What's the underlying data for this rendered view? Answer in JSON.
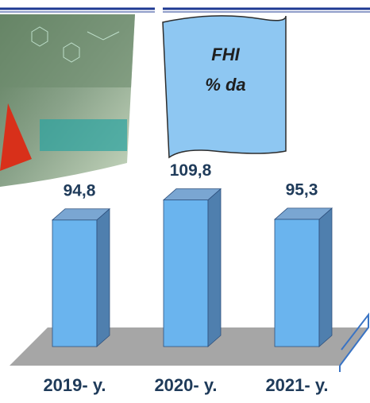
{
  "chart_data": {
    "type": "bar3d",
    "title": "FHI",
    "subtitle": "% da",
    "categories": [
      "2019- y.",
      "2020- y.",
      "2021- y."
    ],
    "values": [
      94.8,
      109.8,
      95.3
    ],
    "value_labels": [
      "94,8",
      "109,8",
      "95,3"
    ],
    "color": "#6ab4ee"
  }
}
